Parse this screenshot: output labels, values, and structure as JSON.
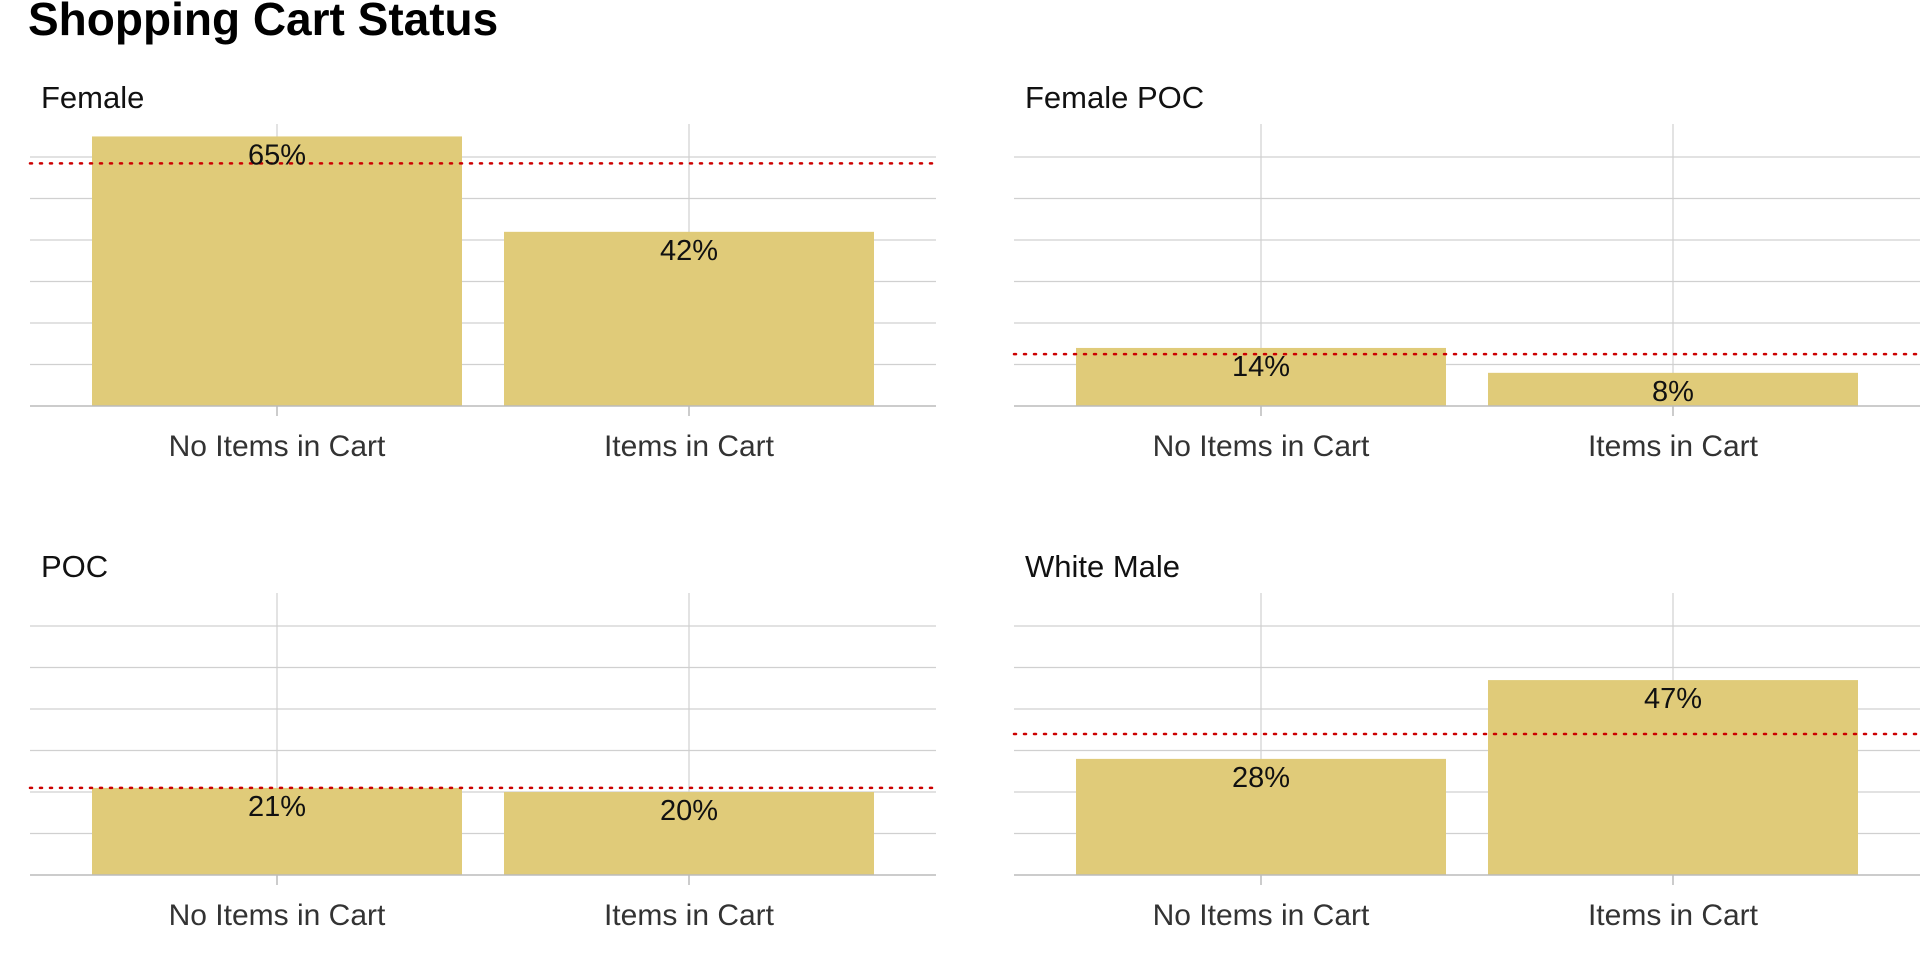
{
  "title": "Shopping Cart Status",
  "colors": {
    "bar": "#e0cb79",
    "reference_line": "#cc0000",
    "grid": "#d0d0d0",
    "axis": "#bbbbbb"
  },
  "chart_data": [
    {
      "type": "bar",
      "title": "Female",
      "categories": [
        "No Items in Cart",
        "Items in Cart"
      ],
      "values": [
        65,
        42
      ],
      "labels": [
        "65%",
        "42%"
      ],
      "reference_line": 58.5,
      "ylim": [
        0,
        68
      ],
      "xlabel": "",
      "ylabel": "",
      "grid": true
    },
    {
      "type": "bar",
      "title": "Female POC",
      "categories": [
        "No Items in Cart",
        "Items in Cart"
      ],
      "values": [
        14,
        8
      ],
      "labels": [
        "14%",
        "8%"
      ],
      "reference_line": 12.5,
      "ylim": [
        0,
        68
      ],
      "xlabel": "",
      "ylabel": "",
      "grid": true
    },
    {
      "type": "bar",
      "title": "POC",
      "categories": [
        "No Items in Cart",
        "Items in Cart"
      ],
      "values": [
        21,
        20
      ],
      "labels": [
        "21%",
        "20%"
      ],
      "reference_line": 21,
      "ylim": [
        0,
        68
      ],
      "xlabel": "",
      "ylabel": "",
      "grid": true
    },
    {
      "type": "bar",
      "title": "White Male",
      "categories": [
        "No Items in Cart",
        "Items in Cart"
      ],
      "values": [
        28,
        47
      ],
      "labels": [
        "28%",
        "47%"
      ],
      "reference_line": 34,
      "ylim": [
        0,
        68
      ],
      "xlabel": "",
      "ylabel": "",
      "grid": true
    }
  ]
}
